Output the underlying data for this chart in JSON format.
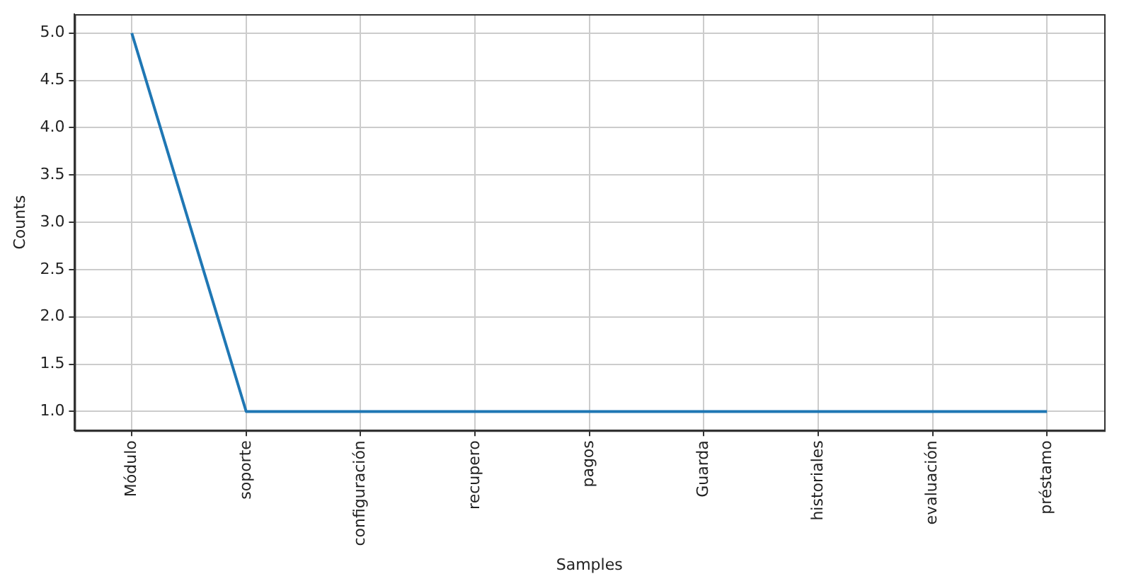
{
  "chart_data": {
    "type": "line",
    "xlabel": "Samples",
    "ylabel": "Counts",
    "categories": [
      "Módulo",
      "soporte",
      "configuración",
      "recupero",
      "pagos",
      "Guarda",
      "historiales",
      "evaluación",
      "préstamo"
    ],
    "series": [
      {
        "color": "#1f77b4",
        "values": [
          5,
          1,
          1,
          1,
          1,
          1,
          1,
          1,
          1
        ]
      }
    ],
    "ylim": [
      0.8,
      5.2
    ],
    "yticks": [
      {
        "value": 1,
        "label": "1.0"
      },
      {
        "value": 1.5,
        "label": "1.5"
      },
      {
        "value": 2,
        "label": "2.0"
      },
      {
        "value": 2.5,
        "label": "2.5"
      },
      {
        "value": 3,
        "label": "3.0"
      },
      {
        "value": 3.5,
        "label": "3.5"
      },
      {
        "value": 4,
        "label": "4.0"
      },
      {
        "value": 4.5,
        "label": "4.5"
      },
      {
        "value": 5,
        "label": "5.0"
      }
    ],
    "grid": true,
    "legend": false,
    "marker": "none",
    "line_style": "solid"
  }
}
